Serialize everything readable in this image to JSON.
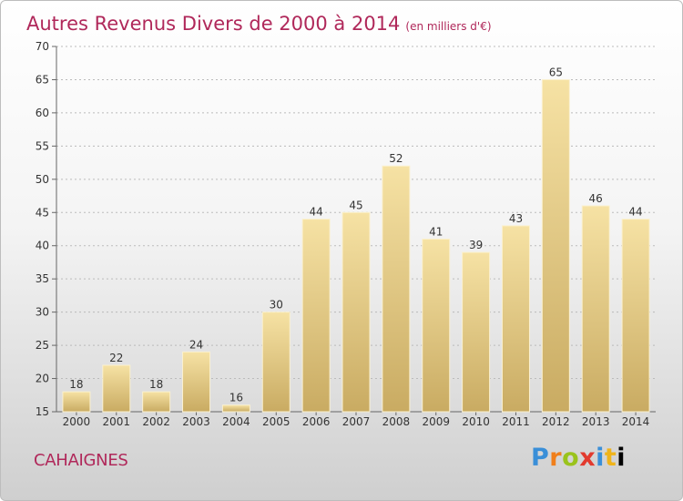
{
  "header": {
    "title": "Autres Revenus Divers de 2000 à 2014",
    "unit": "(en milliers d'€)"
  },
  "footer": {
    "commune": "CAHAIGNES",
    "logo_letters": [
      "P",
      "r",
      "o",
      "x",
      "i",
      "t",
      "i"
    ]
  },
  "colors": {
    "title": "#b0285a",
    "bar_light": "#f6e2a4",
    "bar_dark": "#c9ab62",
    "grid": "#bbbbbb"
  },
  "chart_data": {
    "type": "bar",
    "title": "Autres Revenus Divers de 2000 à 2014",
    "subtitle": "(en milliers d'€)",
    "xlabel": "",
    "ylabel": "",
    "categories": [
      "2000",
      "2001",
      "2002",
      "2003",
      "2004",
      "2005",
      "2006",
      "2007",
      "2008",
      "2009",
      "2010",
      "2011",
      "2012",
      "2013",
      "2014"
    ],
    "values": [
      18,
      22,
      18,
      24,
      16,
      30,
      44,
      45,
      52,
      41,
      39,
      43,
      65,
      46,
      44
    ],
    "ylim": [
      15,
      70
    ],
    "yticks": [
      15,
      20,
      25,
      30,
      35,
      40,
      45,
      50,
      55,
      60,
      65,
      70
    ],
    "grid": true,
    "data_labels": true,
    "legend": "none"
  }
}
